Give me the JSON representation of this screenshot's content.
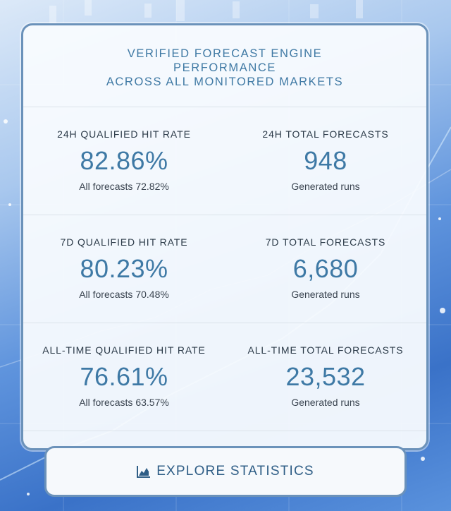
{
  "header": {
    "title_lines": [
      "VERIFIED FORECAST ENGINE",
      "PERFORMANCE",
      "ACROSS ALL MONITORED MARKETS"
    ]
  },
  "stats": [
    {
      "left": {
        "label": "24H QUALIFIED HIT RATE",
        "value": "82.86%",
        "sub": "All forecasts 72.82%"
      },
      "right": {
        "label": "24H TOTAL FORECASTS",
        "value": "948",
        "sub": "Generated runs"
      }
    },
    {
      "left": {
        "label": "7D QUALIFIED HIT RATE",
        "value": "80.23%",
        "sub": "All forecasts 70.48%"
      },
      "right": {
        "label": "7D TOTAL FORECASTS",
        "value": "6,680",
        "sub": "Generated runs"
      }
    },
    {
      "left": {
        "label": "ALL-TIME QUALIFIED HIT RATE",
        "value": "76.61%",
        "sub": "All forecasts 63.57%"
      },
      "right": {
        "label": "ALL-TIME TOTAL FORECASTS",
        "value": "23,532",
        "sub": "Generated runs"
      }
    }
  ],
  "explore_button": {
    "label": "EXPLORE STATISTICS",
    "icon": "area-chart-icon"
  },
  "colors": {
    "accent": "#3e79a5",
    "border": "#6b92ba",
    "background": "#5f94dd"
  }
}
